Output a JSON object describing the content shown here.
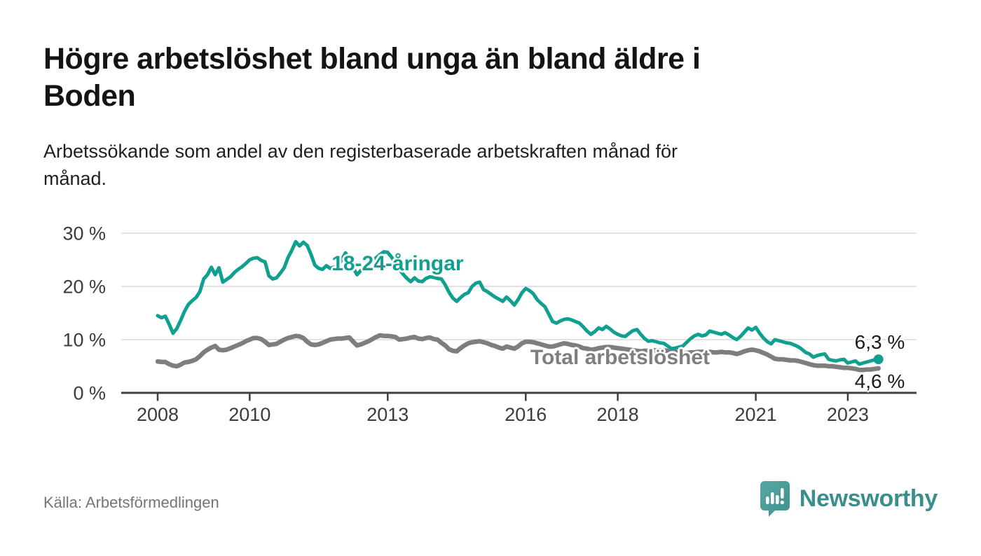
{
  "header": {
    "title": "Högre arbetslöshet bland unga än bland äldre i Boden",
    "title_lines": [
      "Högre arbetslöshet bland unga än bland äldre i",
      "Boden"
    ],
    "subtitle": "Arbetssökande som andel av den registerbaserade arbetskraften månad för månad.",
    "subtitle_lines": [
      "Arbetssökande som andel av den registerbaserade arbetskraften månad för",
      "månad."
    ]
  },
  "footer": {
    "source": "Källa: Arbetsförmedlingen",
    "brand": "Newsworthy",
    "brand_color": "#3a8f8c",
    "logo_icon": "map-pin-bar-chart"
  },
  "chart_data": {
    "type": "line",
    "unit": "%",
    "x_monthly_from": "2008-01",
    "x_monthly_to": "2023-09",
    "xticks": [
      2008,
      2010,
      2013,
      2016,
      2018,
      2021,
      2023
    ],
    "xtick_labels": [
      "2008",
      "2010",
      "2013",
      "2016",
      "2018",
      "2021",
      "2023"
    ],
    "yticks": [
      0,
      10,
      20,
      30
    ],
    "ytick_labels": [
      "0 %",
      "10 %",
      "20 %",
      "30 %"
    ],
    "ylim": [
      0,
      30
    ],
    "xlim_years": [
      2007.2,
      2024.5
    ],
    "grid": "horizontal",
    "grid_color": "#d9d9d9",
    "axis_color": "#3f3f3f",
    "series": [
      {
        "name": "18-24-åringar",
        "color": "#10a090",
        "end_label": "6,3 %",
        "end_dot": true,
        "label_year": 2011.78,
        "label_value": 24.2,
        "values": [
          14.5,
          14.1,
          14.4,
          12.9,
          11.2,
          12.1,
          13.6,
          15.3,
          16.6,
          17.3,
          17.9,
          19.0,
          21.4,
          22.2,
          23.6,
          22.2,
          23.5,
          20.8,
          21.3,
          21.8,
          22.6,
          23.2,
          23.7,
          24.3,
          25.0,
          25.3,
          25.4,
          24.9,
          24.6,
          22.0,
          21.4,
          21.6,
          22.5,
          23.5,
          25.4,
          26.8,
          28.4,
          27.6,
          28.3,
          27.7,
          26.0,
          24.0,
          23.4,
          23.2,
          23.9,
          23.4,
          23.6,
          23.8,
          25.0,
          26.3,
          25.2,
          23.5,
          22.2,
          23.0,
          23.6,
          24.2,
          24.8,
          25.4,
          26.0,
          26.5,
          26.4,
          25.5,
          24.4,
          23.3,
          22.3,
          21.5,
          20.9,
          21.6,
          21.0,
          20.9,
          21.5,
          21.8,
          21.7,
          21.5,
          21.4,
          20.3,
          18.9,
          17.8,
          17.2,
          17.9,
          18.5,
          18.8,
          20.0,
          20.6,
          20.8,
          19.4,
          19.0,
          18.5,
          18.0,
          17.6,
          17.2,
          18.0,
          17.3,
          16.5,
          17.5,
          18.8,
          19.6,
          19.2,
          18.6,
          17.5,
          16.8,
          16.2,
          14.8,
          13.4,
          13.1,
          13.5,
          13.8,
          13.9,
          13.7,
          13.4,
          13.1,
          12.4,
          11.6,
          11.0,
          11.5,
          12.2,
          11.9,
          12.5,
          12.0,
          11.4,
          11.0,
          10.7,
          10.6,
          11.2,
          11.7,
          11.9,
          11.0,
          10.2,
          9.7,
          9.8,
          9.6,
          9.4,
          9.3,
          8.8,
          8.3,
          8.4,
          8.6,
          8.8,
          9.5,
          10.2,
          10.7,
          11.0,
          10.7,
          10.9,
          11.6,
          11.4,
          11.2,
          11.0,
          11.3,
          10.9,
          10.4,
          10.0,
          10.6,
          11.4,
          12.2,
          11.8,
          12.3,
          11.2,
          10.3,
          9.6,
          9.2,
          10.0,
          9.8,
          9.6,
          9.4,
          9.3,
          9.0,
          8.7,
          8.2,
          7.6,
          7.3,
          6.7,
          7.0,
          7.2,
          7.3,
          6.3,
          6.1,
          6.0,
          6.2,
          6.3,
          5.6,
          5.8,
          6.0,
          5.4,
          5.6,
          5.8,
          6.0,
          6.2,
          6.3
        ]
      },
      {
        "name": "Total arbetslöshet",
        "color": "#7f7e7f",
        "end_label": "4,6 %",
        "end_dot": false,
        "label_year": 2016.1,
        "label_value": 6.6,
        "values": [
          5.9,
          5.8,
          5.8,
          5.4,
          5.1,
          5.0,
          5.3,
          5.7,
          5.8,
          6.0,
          6.3,
          6.9,
          7.6,
          8.1,
          8.5,
          8.8,
          8.1,
          8.0,
          8.1,
          8.4,
          8.7,
          9.0,
          9.3,
          9.7,
          10.0,
          10.3,
          10.3,
          10.1,
          9.6,
          9.0,
          9.1,
          9.2,
          9.6,
          10.0,
          10.3,
          10.5,
          10.7,
          10.6,
          10.3,
          9.6,
          9.1,
          9.0,
          9.1,
          9.4,
          9.7,
          10.0,
          10.1,
          10.2,
          10.2,
          10.3,
          10.4,
          9.6,
          8.9,
          9.1,
          9.4,
          9.7,
          10.1,
          10.5,
          10.8,
          10.7,
          10.7,
          10.6,
          10.5,
          10.0,
          10.1,
          10.2,
          10.4,
          10.5,
          10.2,
          10.1,
          10.3,
          10.4,
          10.1,
          10.0,
          9.4,
          8.9,
          8.2,
          7.9,
          7.8,
          8.4,
          8.9,
          9.3,
          9.5,
          9.6,
          9.7,
          9.5,
          9.3,
          9.0,
          8.8,
          8.5,
          8.3,
          8.7,
          8.5,
          8.3,
          8.7,
          9.3,
          9.6,
          9.6,
          9.5,
          9.3,
          9.1,
          8.9,
          8.7,
          8.7,
          8.9,
          9.1,
          9.3,
          9.2,
          9.0,
          8.9,
          8.7,
          8.4,
          8.3,
          8.1,
          8.2,
          8.4,
          8.5,
          8.6,
          8.6,
          8.5,
          8.4,
          8.3,
          8.2,
          8.1,
          8.0,
          7.9,
          7.8,
          7.9,
          7.9,
          8.0,
          8.0,
          8.0,
          8.0,
          7.9,
          7.8,
          7.7,
          7.6,
          7.5,
          7.5,
          7.6,
          7.6,
          7.7,
          7.7,
          7.7,
          7.7,
          7.6,
          7.6,
          7.7,
          7.6,
          7.6,
          7.5,
          7.3,
          7.5,
          7.8,
          8.0,
          8.1,
          8.0,
          7.8,
          7.5,
          7.2,
          6.8,
          6.4,
          6.3,
          6.3,
          6.2,
          6.1,
          6.1,
          6.0,
          5.8,
          5.6,
          5.4,
          5.2,
          5.1,
          5.1,
          5.1,
          5.0,
          5.0,
          4.9,
          4.8,
          4.7,
          4.7,
          4.6,
          4.5,
          4.3,
          4.3,
          4.4,
          4.4,
          4.5,
          4.6
        ]
      }
    ]
  }
}
